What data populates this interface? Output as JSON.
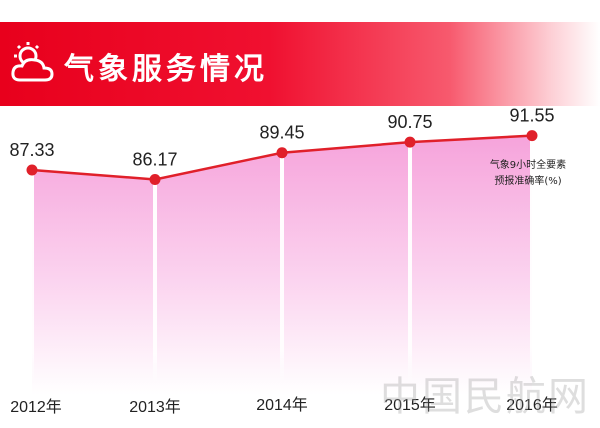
{
  "header": {
    "title": "气象服务情况",
    "icon": "weather-cloud-sun-icon"
  },
  "colors": {
    "banner": "#e8001c",
    "line": "#e0202a",
    "fill": "#f7a6d9",
    "pillar": "#ffffff"
  },
  "chart_data": {
    "type": "area",
    "categories": [
      "2012年",
      "2013年",
      "2014年",
      "2015年",
      "2016年"
    ],
    "values": [
      87.33,
      86.17,
      89.45,
      90.75,
      91.55
    ],
    "value_labels": [
      "87.33",
      "86.17",
      "89.45",
      "90.75",
      "91.55"
    ],
    "series": [
      {
        "values": [
          87.33,
          86.17,
          89.45,
          90.75,
          91.55
        ]
      }
    ],
    "annotation": [
      "气象9小时全要素",
      "预报准确率(%)"
    ],
    "ylim": [
      0,
      100
    ],
    "grid": false
  },
  "watermark": "中国民航网"
}
